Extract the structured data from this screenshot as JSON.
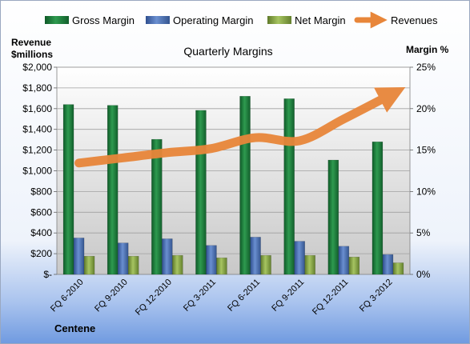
{
  "chart_data": {
    "type": "bar",
    "title": "Quarterly Margins",
    "company": "Centene",
    "left_axis": {
      "label_line1": "Revenue",
      "label_line2": "$millions",
      "ylim": [
        0,
        2000
      ],
      "ticks": [
        0,
        200,
        400,
        600,
        800,
        1000,
        1200,
        1400,
        1600,
        1800,
        2000
      ],
      "tick_labels": [
        "$-",
        "$200",
        "$400",
        "$600",
        "$800",
        "$1,000",
        "$1,200",
        "$1,400",
        "$1,600",
        "$1,800",
        "$2,000"
      ]
    },
    "right_axis": {
      "label": "Margin %",
      "ylim": [
        0,
        25
      ],
      "ticks": [
        0,
        5,
        10,
        15,
        20,
        25
      ],
      "tick_labels": [
        "0%",
        "5%",
        "10%",
        "15%",
        "20%",
        "25%"
      ]
    },
    "categories": [
      "FQ 6-2010",
      "FQ 9-2010",
      "FQ 12-2010",
      "FQ 3-2011",
      "FQ 6-2011",
      "FQ 9-2011",
      "FQ 12-2011",
      "FQ 3-2012"
    ],
    "series": [
      {
        "name": "Gross Margin",
        "kind": "bar",
        "axis": "right",
        "color": "#1e7a3c",
        "values": [
          20.5,
          20.4,
          16.3,
          19.8,
          21.5,
          21.2,
          13.8,
          16.0
        ]
      },
      {
        "name": "Operating Margin",
        "kind": "bar",
        "axis": "right",
        "color": "#4a6fb5",
        "values": [
          4.4,
          3.8,
          4.3,
          3.5,
          4.5,
          4.0,
          3.4,
          2.4
        ]
      },
      {
        "name": "Net Margin",
        "kind": "bar",
        "axis": "right",
        "color": "#8aa84a",
        "values": [
          2.2,
          2.2,
          2.3,
          2.0,
          2.3,
          2.3,
          2.1,
          1.4
        ]
      },
      {
        "name": "Revenues",
        "kind": "line",
        "axis": "left",
        "color": "#e8863a",
        "values": [
          1075,
          1125,
          1175,
          1215,
          1320,
          1290,
          1500,
          1720
        ]
      }
    ],
    "grid": true,
    "legend_position": "top"
  }
}
